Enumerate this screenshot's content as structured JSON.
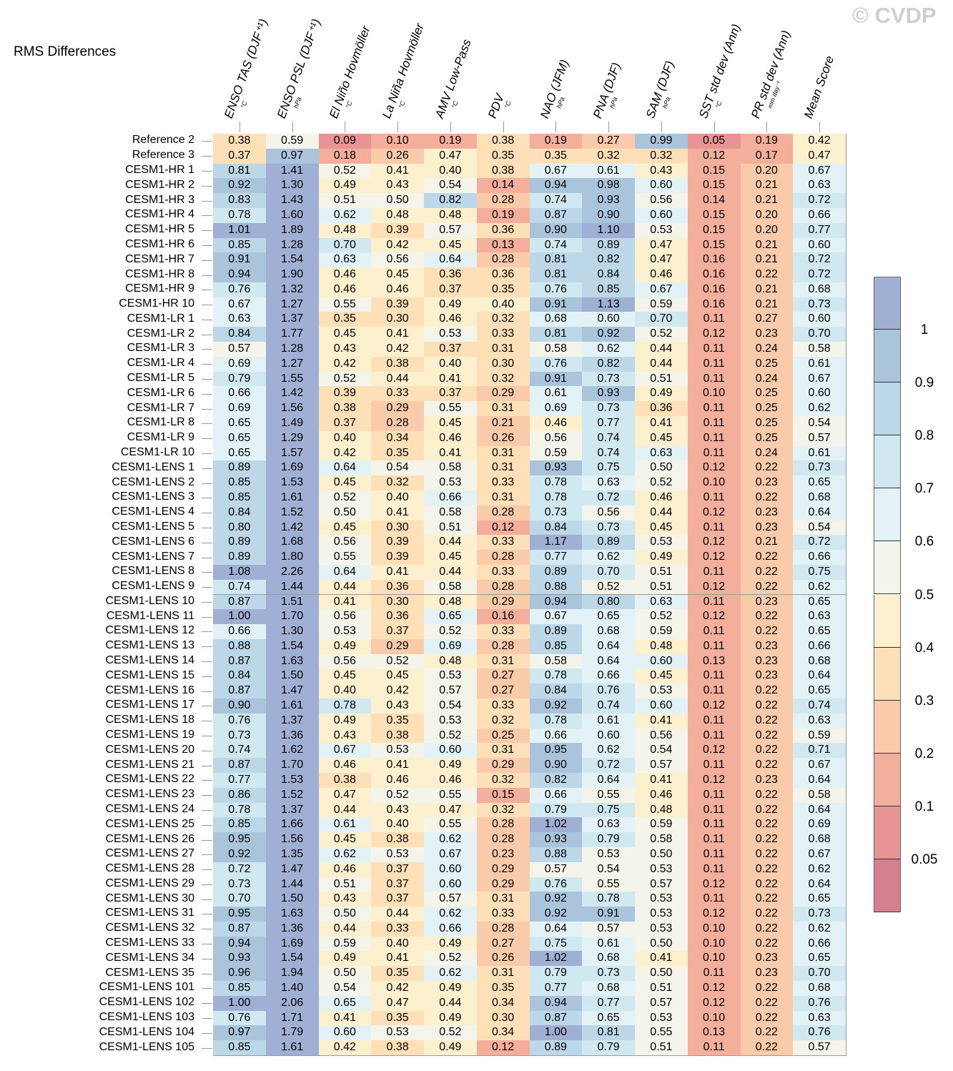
{
  "title": "RMS Differences",
  "watermark": "© CVDP",
  "chart_data": {
    "type": "heatmap",
    "title": "RMS Differences",
    "columns": [
      {
        "label": "ENSO TAS (DJF⁺¹)",
        "unit": "°C"
      },
      {
        "label": "ENSO PSL (DJF⁺¹)",
        "unit": "hPa"
      },
      {
        "label": "El Niño Hovmöller",
        "unit": "°C"
      },
      {
        "label": "La Niña Hovmöller",
        "unit": "°C"
      },
      {
        "label": "AMV Low-Pass",
        "unit": "°C"
      },
      {
        "label": "PDV",
        "unit": "°C"
      },
      {
        "label": "NAO (JFM)",
        "unit": "hPa"
      },
      {
        "label": "PNA (DJF)",
        "unit": "hPa"
      },
      {
        "label": "SAM (DJF)",
        "unit": "hPa"
      },
      {
        "label": "SST std dev (Ann)",
        "unit": "°C"
      },
      {
        "label": "PR std dev (Ann)",
        "unit": "mm day⁻¹"
      },
      {
        "label": "Mean Score",
        "unit": ""
      }
    ],
    "rows": [
      {
        "name": "Reference 2",
        "values": [
          "0.38",
          "0.59",
          "0.09",
          "0.10",
          "0.19",
          "0.38",
          "0.19",
          "0.27",
          "0.99",
          "0.05",
          "0.19",
          "0.42"
        ]
      },
      {
        "name": "Reference 3",
        "values": [
          "0.37",
          "0.97",
          "0.18",
          "0.26",
          "0.47",
          "0.35",
          "0.35",
          "0.32",
          "0.32",
          "0.12",
          "0.17",
          "0.47"
        ]
      },
      {
        "name": "CESM1-HR 1",
        "values": [
          "0.81",
          "1.41",
          "0.52",
          "0.41",
          "0.40",
          "0.38",
          "0.67",
          "0.61",
          "0.43",
          "0.15",
          "0.20",
          "0.67"
        ]
      },
      {
        "name": "CESM1-HR 2",
        "values": [
          "0.92",
          "1.30",
          "0.49",
          "0.43",
          "0.54",
          "0.14",
          "0.94",
          "0.98",
          "0.60",
          "0.15",
          "0.21",
          "0.63"
        ]
      },
      {
        "name": "CESM1-HR 3",
        "values": [
          "0.83",
          "1.43",
          "0.51",
          "0.50",
          "0.82",
          "0.28",
          "0.74",
          "0.93",
          "0.56",
          "0.14",
          "0.21",
          "0.72"
        ]
      },
      {
        "name": "CESM1-HR 4",
        "values": [
          "0.78",
          "1.60",
          "0.62",
          "0.48",
          "0.48",
          "0.19",
          "0.87",
          "0.90",
          "0.60",
          "0.15",
          "0.20",
          "0.66"
        ]
      },
      {
        "name": "CESM1-HR 5",
        "values": [
          "1.01",
          "1.89",
          "0.48",
          "0.39",
          "0.57",
          "0.36",
          "0.90",
          "1.10",
          "0.53",
          "0.15",
          "0.20",
          "0.77"
        ]
      },
      {
        "name": "CESM1-HR 6",
        "values": [
          "0.85",
          "1.28",
          "0.70",
          "0.42",
          "0.45",
          "0.13",
          "0.74",
          "0.89",
          "0.47",
          "0.15",
          "0.21",
          "0.60"
        ]
      },
      {
        "name": "CESM1-HR 7",
        "values": [
          "0.91",
          "1.54",
          "0.63",
          "0.56",
          "0.64",
          "0.28",
          "0.81",
          "0.82",
          "0.47",
          "0.16",
          "0.21",
          "0.72"
        ]
      },
      {
        "name": "CESM1-HR 8",
        "values": [
          "0.94",
          "1.90",
          "0.46",
          "0.45",
          "0.36",
          "0.36",
          "0.81",
          "0.84",
          "0.46",
          "0.16",
          "0.22",
          "0.72"
        ]
      },
      {
        "name": "CESM1-HR 9",
        "values": [
          "0.76",
          "1.32",
          "0.46",
          "0.46",
          "0.37",
          "0.35",
          "0.76",
          "0.85",
          "0.67",
          "0.16",
          "0.21",
          "0.68"
        ]
      },
      {
        "name": "CESM1-HR 10",
        "values": [
          "0.67",
          "1.27",
          "0.55",
          "0.39",
          "0.49",
          "0.40",
          "0.91",
          "1.13",
          "0.59",
          "0.16",
          "0.21",
          "0.73"
        ]
      },
      {
        "name": "CESM1-LR 1",
        "values": [
          "0.63",
          "1.37",
          "0.35",
          "0.30",
          "0.46",
          "0.32",
          "0.68",
          "0.60",
          "0.70",
          "0.11",
          "0.27",
          "0.60"
        ]
      },
      {
        "name": "CESM1-LR 2",
        "values": [
          "0.84",
          "1.77",
          "0.45",
          "0.41",
          "0.53",
          "0.33",
          "0.81",
          "0.92",
          "0.52",
          "0.12",
          "0.23",
          "0.70"
        ]
      },
      {
        "name": "CESM1-LR 3",
        "values": [
          "0.57",
          "1.28",
          "0.43",
          "0.42",
          "0.37",
          "0.31",
          "0.58",
          "0.62",
          "0.44",
          "0.11",
          "0.24",
          "0.58"
        ]
      },
      {
        "name": "CESM1-LR 4",
        "values": [
          "0.69",
          "1.27",
          "0.42",
          "0.38",
          "0.40",
          "0.30",
          "0.76",
          "0.82",
          "0.44",
          "0.11",
          "0.25",
          "0.61"
        ]
      },
      {
        "name": "CESM1-LR 5",
        "values": [
          "0.79",
          "1.55",
          "0.52",
          "0.44",
          "0.41",
          "0.32",
          "0.91",
          "0.73",
          "0.51",
          "0.11",
          "0.24",
          "0.67"
        ]
      },
      {
        "name": "CESM1-LR 6",
        "values": [
          "0.66",
          "1.42",
          "0.39",
          "0.33",
          "0.37",
          "0.29",
          "0.61",
          "0.93",
          "0.49",
          "0.10",
          "0.25",
          "0.60"
        ]
      },
      {
        "name": "CESM1-LR 7",
        "values": [
          "0.69",
          "1.56",
          "0.38",
          "0.29",
          "0.55",
          "0.31",
          "0.69",
          "0.73",
          "0.36",
          "0.11",
          "0.25",
          "0.62"
        ]
      },
      {
        "name": "CESM1-LR 8",
        "values": [
          "0.65",
          "1.49",
          "0.37",
          "0.28",
          "0.45",
          "0.21",
          "0.46",
          "0.77",
          "0.41",
          "0.11",
          "0.25",
          "0.54"
        ]
      },
      {
        "name": "CESM1-LR 9",
        "values": [
          "0.65",
          "1.29",
          "0.40",
          "0.34",
          "0.46",
          "0.26",
          "0.56",
          "0.74",
          "0.45",
          "0.11",
          "0.25",
          "0.57"
        ]
      },
      {
        "name": "CESM1-LR 10",
        "values": [
          "0.65",
          "1.57",
          "0.42",
          "0.35",
          "0.41",
          "0.31",
          "0.59",
          "0.74",
          "0.63",
          "0.11",
          "0.24",
          "0.61"
        ]
      },
      {
        "name": "CESM1-LENS 1",
        "values": [
          "0.89",
          "1.69",
          "0.64",
          "0.54",
          "0.58",
          "0.31",
          "0.93",
          "0.75",
          "0.50",
          "0.12",
          "0.22",
          "0.73"
        ]
      },
      {
        "name": "CESM1-LENS 2",
        "values": [
          "0.85",
          "1.53",
          "0.45",
          "0.32",
          "0.53",
          "0.33",
          "0.78",
          "0.63",
          "0.52",
          "0.10",
          "0.23",
          "0.65"
        ]
      },
      {
        "name": "CESM1-LENS 3",
        "values": [
          "0.85",
          "1.61",
          "0.52",
          "0.40",
          "0.66",
          "0.31",
          "0.78",
          "0.72",
          "0.46",
          "0.11",
          "0.22",
          "0.68"
        ]
      },
      {
        "name": "CESM1-LENS 4",
        "values": [
          "0.84",
          "1.52",
          "0.50",
          "0.41",
          "0.58",
          "0.28",
          "0.73",
          "0.56",
          "0.44",
          "0.12",
          "0.23",
          "0.64"
        ]
      },
      {
        "name": "CESM1-LENS 5",
        "values": [
          "0.80",
          "1.42",
          "0.45",
          "0.30",
          "0.51",
          "0.12",
          "0.84",
          "0.73",
          "0.45",
          "0.11",
          "0.23",
          "0.54"
        ]
      },
      {
        "name": "CESM1-LENS 6",
        "values": [
          "0.89",
          "1.68",
          "0.56",
          "0.39",
          "0.44",
          "0.33",
          "1.17",
          "0.89",
          "0.53",
          "0.12",
          "0.21",
          "0.72"
        ]
      },
      {
        "name": "CESM1-LENS 7",
        "values": [
          "0.89",
          "1.80",
          "0.55",
          "0.39",
          "0.45",
          "0.28",
          "0.77",
          "0.62",
          "0.49",
          "0.12",
          "0.22",
          "0.66"
        ]
      },
      {
        "name": "CESM1-LENS 8",
        "values": [
          "1.08",
          "2.26",
          "0.64",
          "0.41",
          "0.44",
          "0.33",
          "0.89",
          "0.70",
          "0.51",
          "0.11",
          "0.22",
          "0.75"
        ]
      },
      {
        "name": "CESM1-LENS 9",
        "values": [
          "0.74",
          "1.44",
          "0.44",
          "0.36",
          "0.58",
          "0.28",
          "0.88",
          "0.52",
          "0.51",
          "0.12",
          "0.22",
          "0.62"
        ]
      },
      {
        "name": "CESM1-LENS 10",
        "values": [
          "0.87",
          "1.51",
          "0.41",
          "0.30",
          "0.48",
          "0.29",
          "0.94",
          "0.80",
          "0.63",
          "0.11",
          "0.23",
          "0.65"
        ]
      },
      {
        "name": "CESM1-LENS 11",
        "values": [
          "1.00",
          "1.70",
          "0.56",
          "0.36",
          "0.65",
          "0.16",
          "0.67",
          "0.65",
          "0.52",
          "0.12",
          "0.22",
          "0.63"
        ]
      },
      {
        "name": "CESM1-LENS 12",
        "values": [
          "0.66",
          "1.30",
          "0.53",
          "0.37",
          "0.52",
          "0.33",
          "0.89",
          "0.68",
          "0.59",
          "0.11",
          "0.22",
          "0.65"
        ]
      },
      {
        "name": "CESM1-LENS 13",
        "values": [
          "0.88",
          "1.54",
          "0.49",
          "0.29",
          "0.69",
          "0.28",
          "0.85",
          "0.64",
          "0.48",
          "0.11",
          "0.23",
          "0.66"
        ]
      },
      {
        "name": "CESM1-LENS 14",
        "values": [
          "0.87",
          "1.63",
          "0.56",
          "0.52",
          "0.48",
          "0.31",
          "0.58",
          "0.64",
          "0.60",
          "0.13",
          "0.23",
          "0.68"
        ]
      },
      {
        "name": "CESM1-LENS 15",
        "values": [
          "0.84",
          "1.50",
          "0.45",
          "0.45",
          "0.53",
          "0.27",
          "0.78",
          "0.66",
          "0.45",
          "0.11",
          "0.23",
          "0.64"
        ]
      },
      {
        "name": "CESM1-LENS 16",
        "values": [
          "0.87",
          "1.47",
          "0.40",
          "0.42",
          "0.57",
          "0.27",
          "0.84",
          "0.76",
          "0.53",
          "0.11",
          "0.22",
          "0.65"
        ]
      },
      {
        "name": "CESM1-LENS 17",
        "values": [
          "0.90",
          "1.61",
          "0.78",
          "0.43",
          "0.54",
          "0.33",
          "0.92",
          "0.74",
          "0.60",
          "0.12",
          "0.22",
          "0.74"
        ]
      },
      {
        "name": "CESM1-LENS 18",
        "values": [
          "0.76",
          "1.37",
          "0.49",
          "0.35",
          "0.53",
          "0.32",
          "0.78",
          "0.61",
          "0.41",
          "0.11",
          "0.22",
          "0.63"
        ]
      },
      {
        "name": "CESM1-LENS 19",
        "values": [
          "0.73",
          "1.36",
          "0.43",
          "0.38",
          "0.52",
          "0.25",
          "0.66",
          "0.60",
          "0.56",
          "0.11",
          "0.22",
          "0.59"
        ]
      },
      {
        "name": "CESM1-LENS 20",
        "values": [
          "0.74",
          "1.62",
          "0.67",
          "0.53",
          "0.60",
          "0.31",
          "0.95",
          "0.62",
          "0.54",
          "0.12",
          "0.22",
          "0.71"
        ]
      },
      {
        "name": "CESM1-LENS 21",
        "values": [
          "0.87",
          "1.70",
          "0.46",
          "0.41",
          "0.49",
          "0.29",
          "0.90",
          "0.72",
          "0.57",
          "0.11",
          "0.22",
          "0.67"
        ]
      },
      {
        "name": "CESM1-LENS 22",
        "values": [
          "0.77",
          "1.53",
          "0.38",
          "0.46",
          "0.46",
          "0.32",
          "0.82",
          "0.64",
          "0.41",
          "0.12",
          "0.23",
          "0.64"
        ]
      },
      {
        "name": "CESM1-LENS 23",
        "values": [
          "0.86",
          "1.52",
          "0.47",
          "0.52",
          "0.55",
          "0.15",
          "0.66",
          "0.55",
          "0.46",
          "0.11",
          "0.22",
          "0.58"
        ]
      },
      {
        "name": "CESM1-LENS 24",
        "values": [
          "0.78",
          "1.37",
          "0.44",
          "0.43",
          "0.47",
          "0.32",
          "0.79",
          "0.75",
          "0.48",
          "0.11",
          "0.22",
          "0.64"
        ]
      },
      {
        "name": "CESM1-LENS 25",
        "values": [
          "0.85",
          "1.66",
          "0.61",
          "0.40",
          "0.55",
          "0.28",
          "1.02",
          "0.63",
          "0.59",
          "0.11",
          "0.22",
          "0.69"
        ]
      },
      {
        "name": "CESM1-LENS 26",
        "values": [
          "0.95",
          "1.56",
          "0.45",
          "0.38",
          "0.62",
          "0.28",
          "0.93",
          "0.79",
          "0.58",
          "0.11",
          "0.22",
          "0.68"
        ]
      },
      {
        "name": "CESM1-LENS 27",
        "values": [
          "0.92",
          "1.35",
          "0.62",
          "0.53",
          "0.67",
          "0.23",
          "0.88",
          "0.53",
          "0.50",
          "0.11",
          "0.22",
          "0.67"
        ]
      },
      {
        "name": "CESM1-LENS 28",
        "values": [
          "0.72",
          "1.47",
          "0.46",
          "0.37",
          "0.60",
          "0.29",
          "0.57",
          "0.54",
          "0.53",
          "0.11",
          "0.22",
          "0.62"
        ]
      },
      {
        "name": "CESM1-LENS 29",
        "values": [
          "0.73",
          "1.44",
          "0.51",
          "0.37",
          "0.60",
          "0.29",
          "0.76",
          "0.55",
          "0.57",
          "0.12",
          "0.22",
          "0.64"
        ]
      },
      {
        "name": "CESM1-LENS 30",
        "values": [
          "0.70",
          "1.50",
          "0.43",
          "0.37",
          "0.57",
          "0.31",
          "0.92",
          "0.78",
          "0.53",
          "0.11",
          "0.22",
          "0.65"
        ]
      },
      {
        "name": "CESM1-LENS 31",
        "values": [
          "0.95",
          "1.63",
          "0.50",
          "0.44",
          "0.62",
          "0.33",
          "0.92",
          "0.91",
          "0.53",
          "0.12",
          "0.22",
          "0.73"
        ]
      },
      {
        "name": "CESM1-LENS 32",
        "values": [
          "0.87",
          "1.36",
          "0.44",
          "0.33",
          "0.66",
          "0.28",
          "0.64",
          "0.57",
          "0.53",
          "0.10",
          "0.22",
          "0.62"
        ]
      },
      {
        "name": "CESM1-LENS 33",
        "values": [
          "0.94",
          "1.69",
          "0.59",
          "0.40",
          "0.49",
          "0.27",
          "0.75",
          "0.61",
          "0.50",
          "0.10",
          "0.22",
          "0.66"
        ]
      },
      {
        "name": "CESM1-LENS 34",
        "values": [
          "0.93",
          "1.54",
          "0.49",
          "0.41",
          "0.52",
          "0.26",
          "1.02",
          "0.68",
          "0.41",
          "0.10",
          "0.23",
          "0.65"
        ]
      },
      {
        "name": "CESM1-LENS 35",
        "values": [
          "0.96",
          "1.94",
          "0.50",
          "0.35",
          "0.62",
          "0.31",
          "0.79",
          "0.73",
          "0.50",
          "0.11",
          "0.23",
          "0.70"
        ]
      },
      {
        "name": "CESM1-LENS 101",
        "values": [
          "0.85",
          "1.40",
          "0.54",
          "0.42",
          "0.49",
          "0.35",
          "0.77",
          "0.68",
          "0.51",
          "0.12",
          "0.22",
          "0.68"
        ]
      },
      {
        "name": "CESM1-LENS 102",
        "values": [
          "1.00",
          "2.06",
          "0.65",
          "0.47",
          "0.44",
          "0.34",
          "0.94",
          "0.77",
          "0.57",
          "0.12",
          "0.22",
          "0.76"
        ]
      },
      {
        "name": "CESM1-LENS 103",
        "values": [
          "0.76",
          "1.71",
          "0.41",
          "0.35",
          "0.49",
          "0.30",
          "0.87",
          "0.65",
          "0.53",
          "0.10",
          "0.22",
          "0.63"
        ]
      },
      {
        "name": "CESM1-LENS 104",
        "values": [
          "0.97",
          "1.79",
          "0.60",
          "0.53",
          "0.52",
          "0.34",
          "1.00",
          "0.81",
          "0.55",
          "0.13",
          "0.22",
          "0.76"
        ]
      },
      {
        "name": "CESM1-LENS 105",
        "values": [
          "0.85",
          "1.61",
          "0.42",
          "0.38",
          "0.49",
          "0.12",
          "0.89",
          "0.79",
          "0.51",
          "0.11",
          "0.22",
          "0.57"
        ]
      }
    ],
    "colorbar": {
      "ticks": [
        "1",
        "0.9",
        "0.8",
        "0.7",
        "0.6",
        "0.5",
        "0.4",
        "0.3",
        "0.2",
        "0.1",
        "0.05"
      ],
      "bounds": [
        1,
        0.9,
        0.8,
        0.7,
        0.6,
        0.5,
        0.4,
        0.3,
        0.2,
        0.1,
        0.05
      ],
      "colors": [
        "#a0b0d4",
        "#aac4dc",
        "#bcd8e8",
        "#d0e8f0",
        "#e2f2f6",
        "#f4f4ea",
        "#fdf0cf",
        "#fde0b8",
        "#f9cbaa",
        "#f4ae9c",
        "#e99494",
        "#d48090"
      ],
      "placement": "right"
    }
  }
}
